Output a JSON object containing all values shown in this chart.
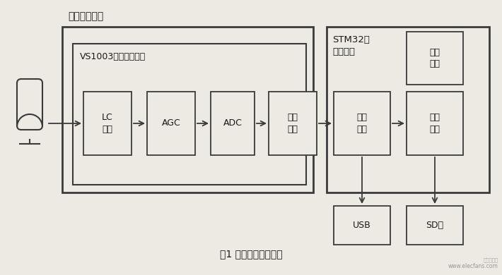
{
  "title": "图1 系统整体设计框图",
  "bg_color": "#ede9e3",
  "box_facecolor": "#ede9e3",
  "box_edgecolor": "#3a3a3a",
  "text_color": "#1a1a1a",
  "figsize": [
    7.1,
    3.9
  ],
  "dpi": 100,
  "caption": "图1 系统整体设计框图",
  "watermark": "www.elecfans.com"
}
